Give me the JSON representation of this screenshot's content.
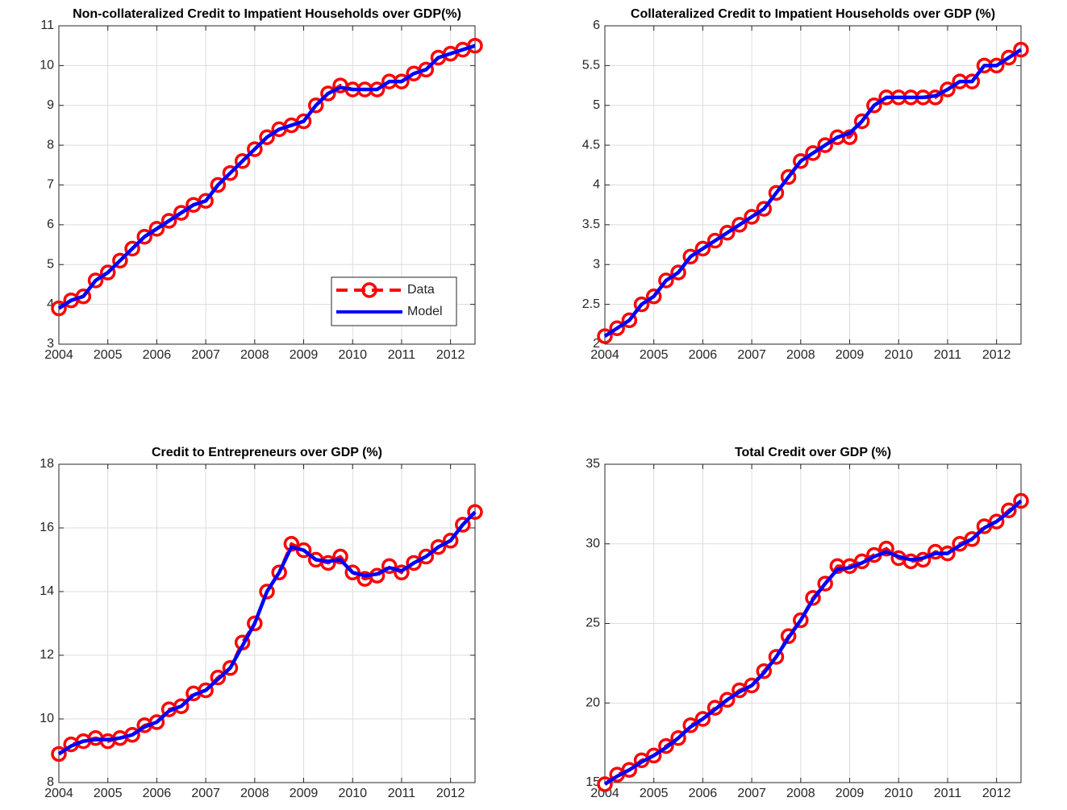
{
  "chart_data": [
    {
      "type": "line",
      "title": "Non-collateralized Credit to Impatient Households over GDP(%)",
      "x": [
        2004,
        2004.25,
        2004.5,
        2004.75,
        2005,
        2005.25,
        2005.5,
        2005.75,
        2006,
        2006.25,
        2006.5,
        2006.75,
        2007,
        2007.25,
        2007.5,
        2007.75,
        2008,
        2008.25,
        2008.5,
        2008.75,
        2009,
        2009.25,
        2009.5,
        2009.75,
        2010,
        2010.25,
        2010.5,
        2010.75,
        2011,
        2011.25,
        2011.5,
        2011.75,
        2012,
        2012.25,
        2012.5
      ],
      "series": [
        {
          "name": "Data",
          "color": "#ff0000",
          "linestyle": "dashed",
          "marker": "circle",
          "values": [
            3.9,
            4.1,
            4.2,
            4.6,
            4.8,
            5.1,
            5.4,
            5.7,
            5.9,
            6.1,
            6.3,
            6.5,
            6.6,
            7.0,
            7.3,
            7.6,
            7.9,
            8.2,
            8.4,
            8.5,
            8.6,
            9.0,
            9.3,
            9.5,
            9.4,
            9.4,
            9.4,
            9.6,
            9.6,
            9.8,
            9.9,
            10.2,
            10.3,
            10.4,
            10.5
          ]
        },
        {
          "name": "Model",
          "color": "#0000ff",
          "linestyle": "solid",
          "values": [
            3.9,
            4.1,
            4.2,
            4.6,
            4.8,
            5.1,
            5.4,
            5.7,
            5.9,
            6.1,
            6.3,
            6.5,
            6.6,
            7.0,
            7.3,
            7.6,
            7.9,
            8.2,
            8.4,
            8.5,
            8.6,
            9.0,
            9.3,
            9.45,
            9.4,
            9.4,
            9.4,
            9.6,
            9.6,
            9.8,
            9.9,
            10.2,
            10.3,
            10.4,
            10.5
          ]
        }
      ],
      "xlim": [
        2004,
        2012.5
      ],
      "xticks": [
        2004,
        2005,
        2006,
        2007,
        2008,
        2009,
        2010,
        2011,
        2012
      ],
      "ylim": [
        3,
        11
      ],
      "yticks": [
        3,
        4,
        5,
        6,
        7,
        8,
        9,
        10,
        11
      ],
      "grid": true,
      "legend": "southeast"
    },
    {
      "type": "line",
      "title": "Collateralized Credit to Impatient Households over GDP (%)",
      "x": [
        2004,
        2004.25,
        2004.5,
        2004.75,
        2005,
        2005.25,
        2005.5,
        2005.75,
        2006,
        2006.25,
        2006.5,
        2006.75,
        2007,
        2007.25,
        2007.5,
        2007.75,
        2008,
        2008.25,
        2008.5,
        2008.75,
        2009,
        2009.25,
        2009.5,
        2009.75,
        2010,
        2010.25,
        2010.5,
        2010.75,
        2011,
        2011.25,
        2011.5,
        2011.75,
        2012,
        2012.25,
        2012.5
      ],
      "series": [
        {
          "name": "Data",
          "color": "#ff0000",
          "linestyle": "dashed",
          "marker": "circle",
          "values": [
            2.1,
            2.2,
            2.3,
            2.5,
            2.6,
            2.8,
            2.9,
            3.1,
            3.2,
            3.3,
            3.4,
            3.5,
            3.6,
            3.7,
            3.9,
            4.1,
            4.3,
            4.4,
            4.5,
            4.6,
            4.6,
            4.8,
            5.0,
            5.1,
            5.1,
            5.1,
            5.1,
            5.1,
            5.2,
            5.3,
            5.3,
            5.5,
            5.5,
            5.6,
            5.7
          ]
        },
        {
          "name": "Model",
          "color": "#0000ff",
          "linestyle": "solid",
          "values": [
            2.1,
            2.2,
            2.3,
            2.5,
            2.6,
            2.8,
            2.9,
            3.1,
            3.2,
            3.3,
            3.4,
            3.5,
            3.6,
            3.7,
            3.9,
            4.1,
            4.3,
            4.4,
            4.5,
            4.6,
            4.65,
            4.8,
            5.0,
            5.1,
            5.1,
            5.1,
            5.1,
            5.12,
            5.2,
            5.3,
            5.3,
            5.5,
            5.5,
            5.6,
            5.7
          ]
        }
      ],
      "xlim": [
        2004,
        2012.5
      ],
      "xticks": [
        2004,
        2005,
        2006,
        2007,
        2008,
        2009,
        2010,
        2011,
        2012
      ],
      "ylim": [
        2,
        6
      ],
      "yticks": [
        2,
        2.5,
        3,
        3.5,
        4,
        4.5,
        5,
        5.5,
        6
      ],
      "grid": true
    },
    {
      "type": "line",
      "title": "Credit to Entrepreneurs over GDP (%)",
      "x": [
        2004,
        2004.25,
        2004.5,
        2004.75,
        2005,
        2005.25,
        2005.5,
        2005.75,
        2006,
        2006.25,
        2006.5,
        2006.75,
        2007,
        2007.25,
        2007.5,
        2007.75,
        2008,
        2008.25,
        2008.5,
        2008.75,
        2009,
        2009.25,
        2009.5,
        2009.75,
        2010,
        2010.25,
        2010.5,
        2010.75,
        2011,
        2011.25,
        2011.5,
        2011.75,
        2012,
        2012.25,
        2012.5
      ],
      "series": [
        {
          "name": "Data",
          "color": "#ff0000",
          "linestyle": "dashed",
          "marker": "circle",
          "values": [
            8.9,
            9.2,
            9.3,
            9.4,
            9.3,
            9.4,
            9.5,
            9.8,
            9.9,
            10.3,
            10.4,
            10.8,
            10.9,
            11.3,
            11.6,
            12.4,
            13.0,
            14.0,
            14.6,
            15.5,
            15.3,
            15.0,
            14.9,
            15.1,
            14.6,
            14.4,
            14.5,
            14.8,
            14.6,
            14.9,
            15.1,
            15.4,
            15.6,
            16.1,
            16.5
          ]
        },
        {
          "name": "Model",
          "color": "#0000ff",
          "linestyle": "solid",
          "values": [
            8.9,
            9.15,
            9.3,
            9.35,
            9.35,
            9.4,
            9.5,
            9.75,
            9.9,
            10.25,
            10.4,
            10.75,
            10.9,
            11.25,
            11.6,
            12.3,
            13.0,
            14.0,
            14.6,
            15.4,
            15.3,
            15.0,
            14.95,
            15.0,
            14.6,
            14.5,
            14.55,
            14.75,
            14.65,
            14.9,
            15.1,
            15.4,
            15.6,
            16.1,
            16.5
          ]
        }
      ],
      "xlim": [
        2004,
        2012.5
      ],
      "xticks": [
        2004,
        2005,
        2006,
        2007,
        2008,
        2009,
        2010,
        2011,
        2012
      ],
      "ylim": [
        8,
        18
      ],
      "yticks": [
        8,
        10,
        12,
        14,
        16,
        18
      ],
      "grid": true
    },
    {
      "type": "line",
      "title": "Total Credit over GDP (%)",
      "x": [
        2004,
        2004.25,
        2004.5,
        2004.75,
        2005,
        2005.25,
        2005.5,
        2005.75,
        2006,
        2006.25,
        2006.5,
        2006.75,
        2007,
        2007.25,
        2007.5,
        2007.75,
        2008,
        2008.25,
        2008.5,
        2008.75,
        2009,
        2009.25,
        2009.5,
        2009.75,
        2010,
        2010.25,
        2010.5,
        2010.75,
        2011,
        2011.25,
        2011.5,
        2011.75,
        2012,
        2012.25,
        2012.5
      ],
      "series": [
        {
          "name": "Data",
          "color": "#ff0000",
          "linestyle": "dashed",
          "marker": "circle",
          "values": [
            14.9,
            15.5,
            15.8,
            16.4,
            16.7,
            17.3,
            17.8,
            18.6,
            19.0,
            19.7,
            20.2,
            20.8,
            21.1,
            22.0,
            22.9,
            24.2,
            25.2,
            26.6,
            27.5,
            28.6,
            28.6,
            28.9,
            29.3,
            29.7,
            29.1,
            28.9,
            29.0,
            29.5,
            29.4,
            30.0,
            30.3,
            31.1,
            31.4,
            32.1,
            32.7
          ]
        },
        {
          "name": "Model",
          "color": "#0000ff",
          "linestyle": "solid",
          "values": [
            14.9,
            15.4,
            15.8,
            16.3,
            16.7,
            17.2,
            17.8,
            18.5,
            19.0,
            19.6,
            20.2,
            20.7,
            21.1,
            21.9,
            22.9,
            24.1,
            25.2,
            26.5,
            27.5,
            28.4,
            28.5,
            28.8,
            29.2,
            29.5,
            29.2,
            29.0,
            29.1,
            29.4,
            29.4,
            29.9,
            30.3,
            31.0,
            31.4,
            32.0,
            32.7
          ]
        }
      ],
      "xlim": [
        2004,
        2012.5
      ],
      "xticks": [
        2004,
        2005,
        2006,
        2007,
        2008,
        2009,
        2010,
        2011,
        2012
      ],
      "ylim": [
        15,
        35
      ],
      "yticks": [
        15,
        20,
        25,
        30,
        35
      ],
      "grid": true
    }
  ]
}
